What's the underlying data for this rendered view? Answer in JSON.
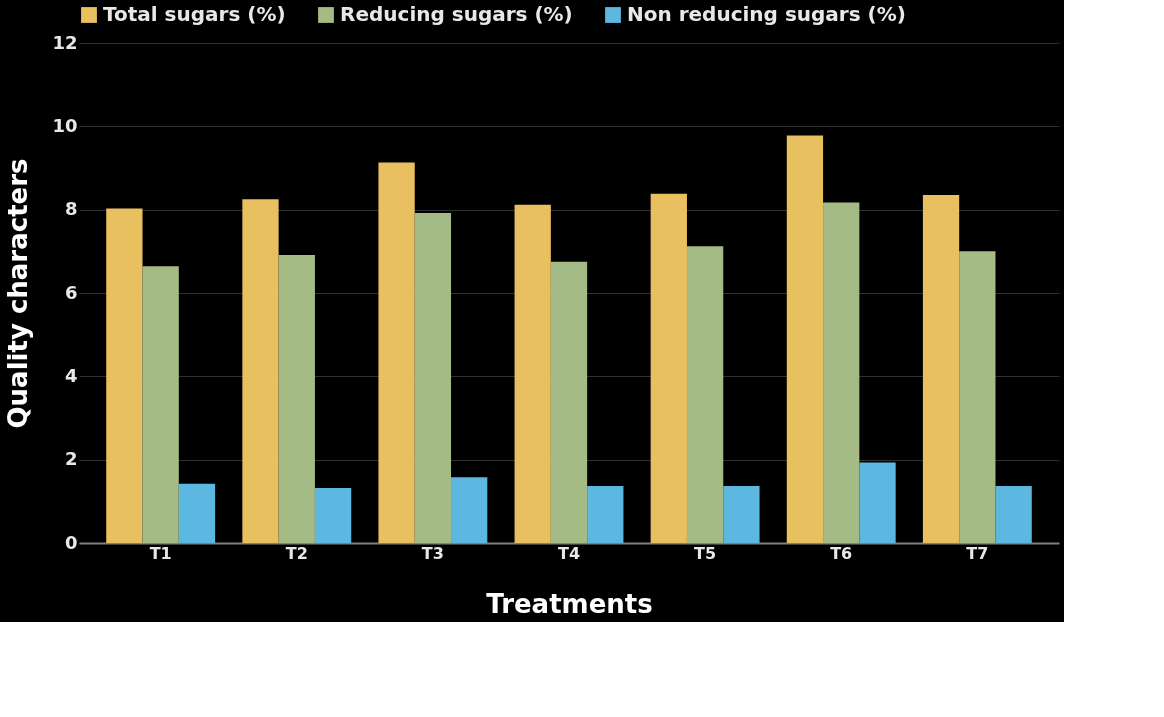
{
  "chart_data": {
    "type": "bar",
    "xlabel": "Treatments",
    "ylabel": "Quality characters",
    "categories": [
      "T1",
      "T2",
      "T3",
      "T4",
      "T5",
      "T6",
      "T7"
    ],
    "series": [
      {
        "name": "Total sugars (%)",
        "color": "#e8c060",
        "values": [
          8.03,
          8.25,
          9.13,
          8.12,
          8.38,
          9.78,
          8.35
        ]
      },
      {
        "name": "Reducing sugars (%)",
        "color": "#a5bb86",
        "values": [
          6.64,
          6.91,
          7.92,
          6.75,
          7.12,
          8.17,
          7.0
        ]
      },
      {
        "name": "Non reducing sugars (%)",
        "color": "#5cb8e0",
        "values": [
          1.42,
          1.32,
          1.58,
          1.37,
          1.37,
          1.93,
          1.37
        ]
      }
    ],
    "ylim": [
      0,
      12
    ],
    "yticks": [
      0,
      2,
      4,
      6,
      8,
      10,
      12
    ],
    "grid": "y",
    "legend": "top"
  }
}
